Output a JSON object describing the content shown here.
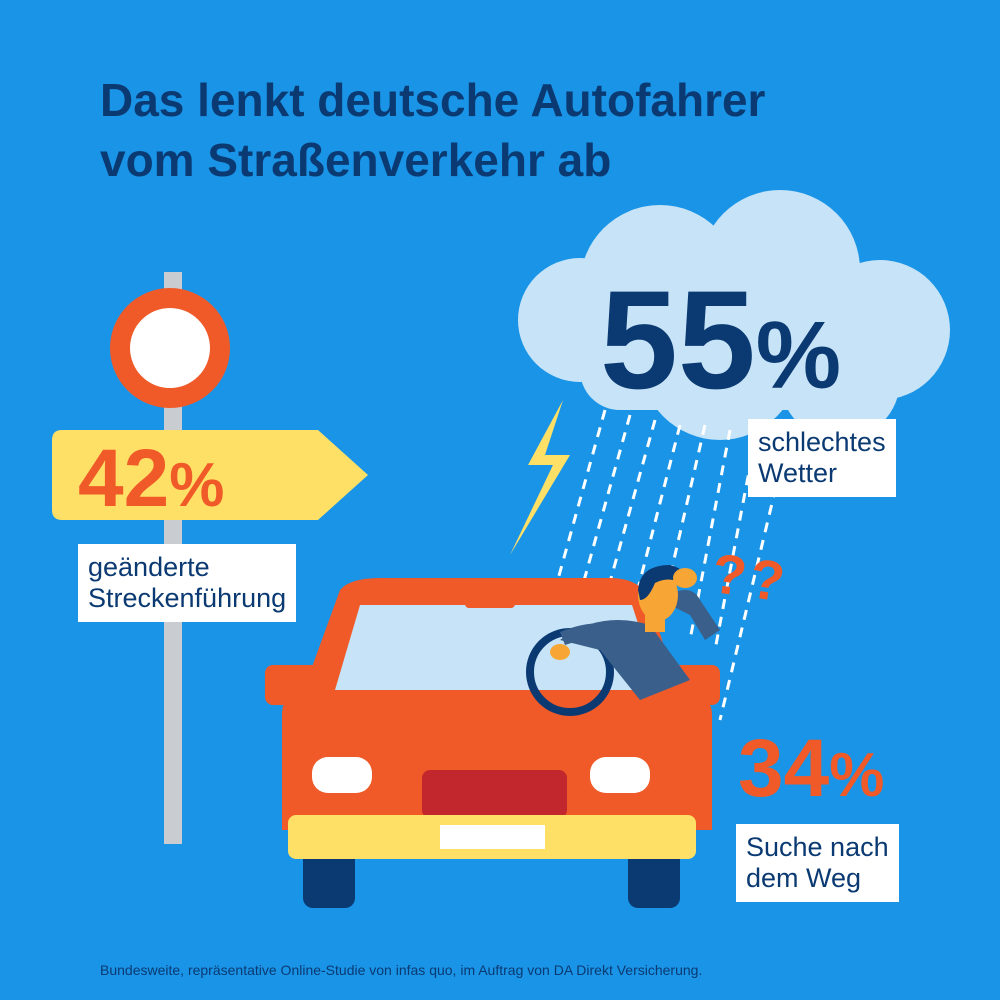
{
  "title": {
    "line1": "Das lenkt deutsche Autofahrer",
    "line2": "vom Straßenverkehr ab"
  },
  "stats": [
    {
      "value": "42",
      "unit": "%",
      "label_line1": "geänderte",
      "label_line2": "Streckenführung",
      "color": "#f05a28"
    },
    {
      "value": "55",
      "unit": "%",
      "label_line1": "schlechtes",
      "label_line2": "Wetter",
      "color": "#0b3a73"
    },
    {
      "value": "34",
      "unit": "%",
      "label_line1": "Suche nach",
      "label_line2": "dem Weg",
      "color": "#f05a28"
    }
  ],
  "confusion_marks": "??",
  "footer": "Bundesweite, repräsentative Online-Studie von infas quo, im Auftrag von DA Direkt Versicherung.",
  "colors": {
    "background": "#1a94e6",
    "title": "#0b3a73",
    "car": "#f05a28",
    "bumper": "#ffe066",
    "cloud": "#c6e3f7",
    "sign_arrow": "#ffe066",
    "rain": "#ffffff"
  }
}
